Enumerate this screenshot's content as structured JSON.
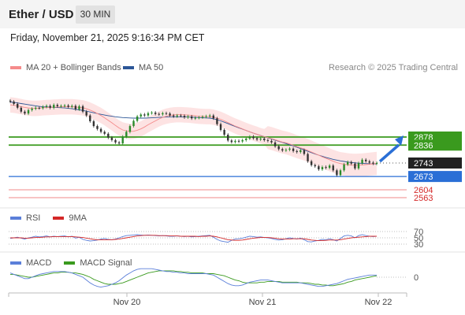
{
  "header": {
    "title": "Ether / USD",
    "timeframe": "30 MIN"
  },
  "date_line": "Friday, November 21, 2025 9:16:34 PM CET",
  "legend": {
    "ma20": {
      "label": "MA 20 + Bollinger Bands",
      "color": "#f58b8b"
    },
    "ma50": {
      "label": "MA 50",
      "color": "#2c5697"
    },
    "copyright": "Research © 2025 Trading Central"
  },
  "rsi_legend": {
    "rsi": "RSI",
    "ma9": "9MA",
    "rsi_color": "#5b7fd9",
    "ma_color": "#d42828"
  },
  "macd_legend": {
    "macd": "MACD",
    "signal": "MACD Signal",
    "macd_color": "#5b7fd9",
    "signal_color": "#3a9a1e"
  },
  "xaxis": {
    "labels": [
      "Nov 20",
      "Nov 21",
      "Nov 22"
    ]
  },
  "rsi_levels": [
    "70",
    "50",
    "30"
  ],
  "macd_zero": "0",
  "price_levels": [
    {
      "value": "2878",
      "color": "#3a9a1e"
    },
    {
      "value": "2836",
      "color": "#3a9a1e"
    },
    {
      "value": "2743",
      "color": "#222222"
    },
    {
      "value": "2673",
      "color": "#2a6fd6"
    },
    {
      "value": "2604",
      "color": "#d42828"
    },
    {
      "value": "2563",
      "color": "#d42828"
    }
  ],
  "chart_data": {
    "type": "candlestick",
    "closes": [
      3062,
      3050,
      3030,
      3010,
      3000,
      3018,
      3025,
      3030,
      3028,
      3035,
      3040,
      3030,
      3045,
      3038,
      3040,
      3042,
      3035,
      3040,
      3022,
      3038,
      3010,
      2990,
      2960,
      2935,
      2920,
      2905,
      2895,
      2875,
      2862,
      2850,
      2845,
      2880,
      2905,
      2935,
      2962,
      2985,
      2995,
      2990,
      3002,
      3005,
      2998,
      2996,
      3002,
      3000,
      2990,
      2985,
      2990,
      2988,
      2980,
      2985,
      2975,
      2978,
      2980,
      2983,
      2986,
      2990,
      2975,
      2945,
      2915,
      2890,
      2860,
      2852,
      2858,
      2855,
      2862,
      2870,
      2880,
      2872,
      2865,
      2870,
      2862,
      2858,
      2850,
      2830,
      2815,
      2808,
      2812,
      2818,
      2805,
      2800,
      2810,
      2790,
      2752,
      2732,
      2726,
      2710,
      2722,
      2718,
      2730,
      2705,
      2680,
      2705,
      2735,
      2748,
      2740,
      2715,
      2742,
      2760,
      2752,
      2745,
      2740,
      2743
    ],
    "ma20": [
      3045,
      3043,
      3040,
      3036,
      3032,
      3029,
      3027,
      3027,
      3028,
      3030,
      3031,
      3032,
      3033,
      3034,
      3035,
      3035,
      3035,
      3035,
      3034,
      3032,
      3030,
      3025,
      3018,
      3010,
      3000,
      2990,
      2978,
      2965,
      2952,
      2938,
      2925,
      2915,
      2910,
      2907,
      2908,
      2913,
      2920,
      2930,
      2942,
      2952,
      2962,
      2972,
      2980,
      2986,
      2990,
      2993,
      2994,
      2994,
      2993,
      2992,
      2990,
      2988,
      2986,
      2985,
      2984,
      2984,
      2981,
      2976,
      2970,
      2962,
      2953,
      2944,
      2935,
      2928,
      2920,
      2912,
      2905,
      2898,
      2892,
      2885,
      2880,
      2875,
      2870,
      2864,
      2858,
      2852,
      2848,
      2842,
      2835,
      2828,
      2822,
      2816,
      2808,
      2800,
      2792,
      2784,
      2775,
      2768,
      2760,
      2752,
      2745,
      2740,
      2737,
      2734,
      2732,
      2731,
      2732,
      2733,
      2735,
      2737,
      2739,
      2741
    ],
    "ma50": [
      3060,
      3058,
      3055,
      3052,
      3049,
      3046,
      3043,
      3040,
      3037,
      3035,
      3034,
      3033,
      3032,
      3031,
      3030,
      3029,
      3027,
      3025,
      3022,
      3019,
      3016,
      3012,
      3008,
      3004,
      3000,
      2996,
      2992,
      2989,
      2986,
      2983,
      2981,
      2979,
      2978,
      2977,
      2976,
      2976,
      2976,
      2976,
      2977,
      2978,
      2979,
      2980,
      2981,
      2982,
      2983,
      2983,
      2983,
      2983,
      2982,
      2982,
      2981,
      2980,
      2979,
      2978,
      2977,
      2976,
      2973,
      2968,
      2962,
      2955,
      2948,
      2940,
      2933,
      2926,
      2919,
      2912,
      2905,
      2898,
      2892,
      2886,
      2880,
      2874,
      2868,
      2862,
      2856,
      2850,
      2844,
      2838,
      2832,
      2825,
      2818,
      2811,
      2804,
      2797,
      2790,
      2784,
      2778,
      2772,
      2767,
      2762,
      2758,
      2754,
      2751,
      2748,
      2746,
      2744,
      2742,
      2741,
      2740,
      2739,
      2738,
      2738
    ],
    "bollinger_width": [
      40,
      40,
      40,
      40,
      40,
      40,
      40,
      40,
      40,
      40,
      40,
      40,
      40,
      40,
      40,
      40,
      40,
      40,
      40,
      40,
      40,
      40,
      40,
      40,
      40,
      40,
      40,
      40,
      40,
      40,
      40,
      40,
      40,
      40,
      40,
      40,
      40,
      40,
      40,
      40,
      40,
      40,
      40,
      40,
      40,
      40,
      40,
      40,
      40,
      40,
      40,
      40,
      40,
      40,
      40,
      40,
      40,
      40,
      40,
      40,
      40,
      40,
      40,
      40,
      40,
      40,
      40,
      40,
      40,
      40,
      40,
      40,
      40,
      40,
      40,
      40,
      40,
      40,
      40,
      40,
      40,
      40,
      40,
      40,
      40,
      40,
      40,
      40,
      40,
      40,
      40,
      40,
      40,
      40,
      40,
      40,
      40,
      40,
      40,
      40,
      40,
      40
    ],
    "forecast_arrow": {
      "from": 2743,
      "to": 2878
    },
    "rsi": [
      48,
      50,
      52,
      49,
      46,
      50,
      52,
      55,
      53,
      54,
      56,
      53,
      55,
      54,
      55,
      56,
      53,
      55,
      49,
      52,
      45,
      42,
      40,
      41,
      43,
      46,
      48,
      45,
      44,
      46,
      50,
      54,
      57,
      58,
      59,
      60,
      59,
      58,
      59,
      58,
      57,
      56,
      57,
      56,
      55,
      55,
      56,
      55,
      54,
      55,
      53,
      54,
      55,
      56,
      57,
      58,
      52,
      45,
      40,
      38,
      36,
      42,
      46,
      47,
      49,
      52,
      55,
      54,
      52,
      53,
      51,
      50,
      48,
      45,
      43,
      44,
      47,
      50,
      48,
      46,
      49,
      44,
      38,
      37,
      40,
      42,
      45,
      44,
      47,
      44,
      40,
      48,
      56,
      58,
      56,
      50,
      57,
      60,
      57,
      55,
      54,
      55
    ],
    "rsi9": [
      50,
      50,
      50,
      50,
      49,
      49,
      50,
      51,
      51,
      52,
      53,
      53,
      54,
      54,
      54,
      54,
      54,
      54,
      53,
      52,
      51,
      49,
      47,
      45,
      44,
      44,
      44,
      44,
      44,
      45,
      46,
      48,
      50,
      52,
      54,
      56,
      57,
      58,
      58,
      58,
      58,
      57,
      57,
      57,
      56,
      56,
      56,
      55,
      55,
      55,
      55,
      55,
      54,
      55,
      55,
      56,
      55,
      53,
      50,
      47,
      44,
      43,
      42,
      42,
      43,
      45,
      47,
      49,
      50,
      51,
      51,
      51,
      50,
      49,
      47,
      46,
      46,
      46,
      47,
      47,
      47,
      47,
      45,
      43,
      42,
      41,
      41,
      42,
      43,
      43,
      43,
      44,
      46,
      48,
      50,
      51,
      52,
      53,
      54,
      55,
      55,
      55
    ],
    "macd": [
      6,
      4,
      2,
      0,
      -2,
      -2,
      0,
      2,
      4,
      5,
      6,
      7,
      8,
      8,
      8,
      8,
      7,
      6,
      4,
      2,
      0,
      -4,
      -8,
      -11,
      -13,
      -14,
      -13,
      -12,
      -10,
      -8,
      -5,
      -1,
      3,
      6,
      9,
      11,
      12,
      12,
      12,
      12,
      11,
      10,
      9,
      8,
      8,
      7,
      7,
      6,
      6,
      5,
      5,
      5,
      5,
      5,
      5,
      4,
      3,
      0,
      -3,
      -6,
      -9,
      -11,
      -12,
      -12,
      -11,
      -9,
      -7,
      -6,
      -5,
      -4,
      -4,
      -4,
      -5,
      -6,
      -7,
      -8,
      -8,
      -8,
      -8,
      -8,
      -8,
      -9,
      -10,
      -11,
      -12,
      -13,
      -13,
      -12,
      -11,
      -10,
      -9,
      -7,
      -5,
      -3,
      -2,
      -1,
      0,
      1,
      2,
      3,
      3,
      3
    ],
    "signal": [
      4,
      4,
      3,
      2,
      1,
      0,
      0,
      1,
      2,
      3,
      4,
      5,
      6,
      6,
      7,
      7,
      7,
      6,
      6,
      5,
      4,
      2,
      0,
      -3,
      -5,
      -7,
      -9,
      -10,
      -10,
      -10,
      -9,
      -8,
      -6,
      -4,
      -2,
      0,
      2,
      4,
      6,
      7,
      8,
      9,
      9,
      9,
      9,
      9,
      8,
      8,
      7,
      7,
      6,
      6,
      6,
      6,
      5,
      5,
      5,
      4,
      3,
      2,
      0,
      -2,
      -4,
      -5,
      -7,
      -8,
      -8,
      -8,
      -8,
      -7,
      -7,
      -6,
      -6,
      -6,
      -6,
      -7,
      -7,
      -7,
      -7,
      -7,
      -8,
      -8,
      -8,
      -9,
      -10,
      -10,
      -11,
      -11,
      -12,
      -12,
      -11,
      -10,
      -9,
      -7,
      -6,
      -4,
      -3,
      -2,
      -1,
      0,
      1,
      2
    ]
  }
}
